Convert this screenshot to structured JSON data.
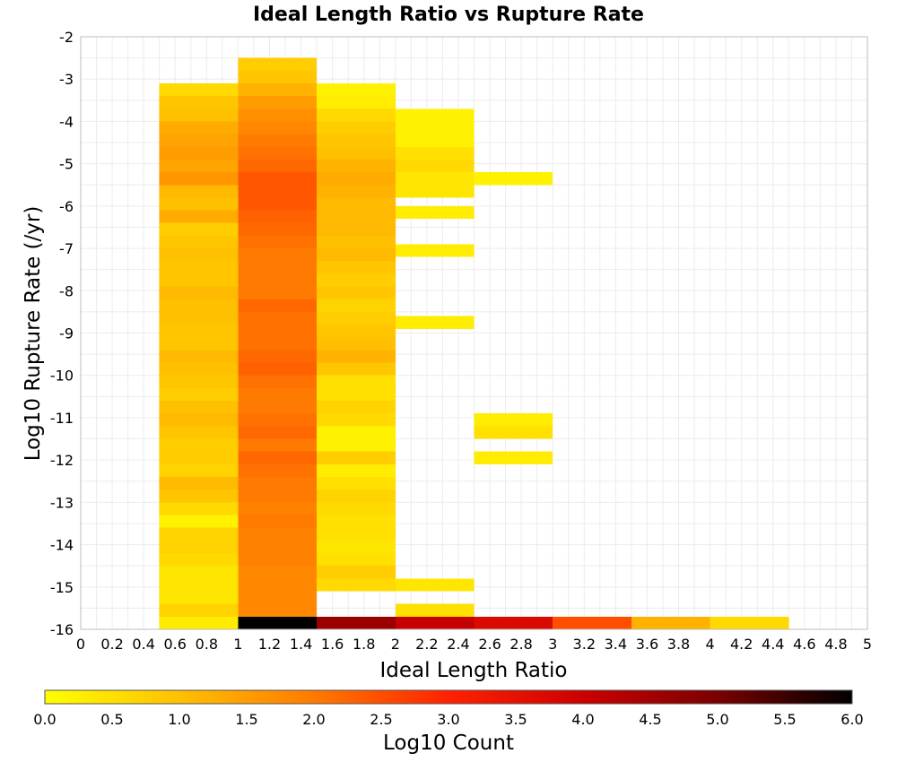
{
  "chart_data": {
    "type": "heatmap",
    "title": "Ideal Length Ratio vs Rupture Rate",
    "xlabel": "Ideal Length Ratio",
    "ylabel": "Log10 Rupture Rate (/yr)",
    "xlim": [
      0,
      5
    ],
    "ylim": [
      -16,
      -2
    ],
    "x_ticks": [
      "0",
      "0.2",
      "0.4",
      "0.6",
      "0.8",
      "1",
      "1.2",
      "1.4",
      "1.6",
      "1.8",
      "2",
      "2.2",
      "2.4",
      "2.6",
      "2.8",
      "3",
      "3.2",
      "3.4",
      "3.6",
      "3.8",
      "4",
      "4.2",
      "4.4",
      "4.6",
      "4.8",
      "5"
    ],
    "y_ticks": [
      "-2",
      "-3",
      "-4",
      "-5",
      "-6",
      "-7",
      "-8",
      "-9",
      "-10",
      "-11",
      "-12",
      "-13",
      "-14",
      "-15",
      "-16"
    ],
    "grid": true,
    "colorbar": {
      "label": "Log10 Count",
      "range": [
        0,
        6
      ],
      "ticks": [
        "0.0",
        "0.5",
        "1.0",
        "1.5",
        "2.0",
        "2.5",
        "3.0",
        "3.5",
        "4.0",
        "4.5",
        "5.0",
        "5.5",
        "6.0"
      ],
      "colors": [
        "#ffff00",
        "#ffc000",
        "#ff7a00",
        "#ff2200",
        "#cc0000",
        "#7a0000",
        "#000000"
      ]
    },
    "x_bin_width": 0.5,
    "y_bin_height": 0.3,
    "columns": [
      {
        "x_start": 0.5,
        "bins": [
          {
            "y": -3.4,
            "value": 0.6
          },
          {
            "y": -3.7,
            "value": 0.9
          },
          {
            "y": -4.0,
            "value": 1.0
          },
          {
            "y": -4.3,
            "value": 1.3
          },
          {
            "y": -4.6,
            "value": 1.4
          },
          {
            "y": -4.9,
            "value": 1.5
          },
          {
            "y": -5.2,
            "value": 1.4
          },
          {
            "y": -5.5,
            "value": 1.6
          },
          {
            "y": -5.8,
            "value": 1.1
          },
          {
            "y": -6.1,
            "value": 1.0
          },
          {
            "y": -6.4,
            "value": 1.3
          },
          {
            "y": -6.7,
            "value": 0.8
          },
          {
            "y": -7.0,
            "value": 0.9
          },
          {
            "y": -7.3,
            "value": 1.0
          },
          {
            "y": -7.6,
            "value": 0.9
          },
          {
            "y": -7.9,
            "value": 0.9
          },
          {
            "y": -8.2,
            "value": 1.1
          },
          {
            "y": -8.5,
            "value": 1.0
          },
          {
            "y": -8.8,
            "value": 1.0
          },
          {
            "y": -9.1,
            "value": 0.9
          },
          {
            "y": -9.4,
            "value": 0.9
          },
          {
            "y": -9.7,
            "value": 1.1
          },
          {
            "y": -10.0,
            "value": 1.0
          },
          {
            "y": -10.3,
            "value": 0.9
          },
          {
            "y": -10.6,
            "value": 0.8
          },
          {
            "y": -10.9,
            "value": 1.0
          },
          {
            "y": -11.2,
            "value": 1.1
          },
          {
            "y": -11.5,
            "value": 0.9
          },
          {
            "y": -11.8,
            "value": 0.8
          },
          {
            "y": -12.1,
            "value": 0.8
          },
          {
            "y": -12.4,
            "value": 0.7
          },
          {
            "y": -12.7,
            "value": 1.1
          },
          {
            "y": -13.0,
            "value": 0.9
          },
          {
            "y": -13.3,
            "value": 0.6
          },
          {
            "y": -13.6,
            "value": 0.2
          },
          {
            "y": -13.9,
            "value": 0.7
          },
          {
            "y": -14.2,
            "value": 0.7
          },
          {
            "y": -14.5,
            "value": 0.6
          },
          {
            "y": -14.8,
            "value": 0.4
          },
          {
            "y": -15.1,
            "value": 0.4
          },
          {
            "y": -15.4,
            "value": 0.4
          },
          {
            "y": -15.7,
            "value": 0.7
          },
          {
            "y": -16.0,
            "value": 0.3
          }
        ]
      },
      {
        "x_start": 1.0,
        "bins": [
          {
            "y": -2.8,
            "value": 0.8
          },
          {
            "y": -3.1,
            "value": 0.9
          },
          {
            "y": -3.4,
            "value": 1.2
          },
          {
            "y": -3.7,
            "value": 1.5
          },
          {
            "y": -4.0,
            "value": 1.7
          },
          {
            "y": -4.3,
            "value": 1.8
          },
          {
            "y": -4.6,
            "value": 2.0
          },
          {
            "y": -4.9,
            "value": 2.1
          },
          {
            "y": -5.2,
            "value": 2.2
          },
          {
            "y": -5.5,
            "value": 2.4
          },
          {
            "y": -5.8,
            "value": 2.4
          },
          {
            "y": -6.1,
            "value": 2.4
          },
          {
            "y": -6.4,
            "value": 2.3
          },
          {
            "y": -6.7,
            "value": 2.2
          },
          {
            "y": -7.0,
            "value": 2.1
          },
          {
            "y": -7.3,
            "value": 2.0
          },
          {
            "y": -7.6,
            "value": 2.0
          },
          {
            "y": -7.9,
            "value": 2.0
          },
          {
            "y": -8.2,
            "value": 2.0
          },
          {
            "y": -8.5,
            "value": 2.2
          },
          {
            "y": -8.8,
            "value": 2.1
          },
          {
            "y": -9.1,
            "value": 2.1
          },
          {
            "y": -9.4,
            "value": 2.1
          },
          {
            "y": -9.7,
            "value": 2.2
          },
          {
            "y": -10.0,
            "value": 2.3
          },
          {
            "y": -10.3,
            "value": 2.1
          },
          {
            "y": -10.6,
            "value": 2.0
          },
          {
            "y": -10.9,
            "value": 2.0
          },
          {
            "y": -11.2,
            "value": 2.1
          },
          {
            "y": -11.5,
            "value": 2.2
          },
          {
            "y": -11.8,
            "value": 2.0
          },
          {
            "y": -12.1,
            "value": 2.2
          },
          {
            "y": -12.4,
            "value": 2.1
          },
          {
            "y": -12.7,
            "value": 2.0
          },
          {
            "y": -13.0,
            "value": 2.0
          },
          {
            "y": -13.3,
            "value": 1.9
          },
          {
            "y": -13.6,
            "value": 2.0
          },
          {
            "y": -13.9,
            "value": 1.9
          },
          {
            "y": -14.2,
            "value": 1.9
          },
          {
            "y": -14.5,
            "value": 1.9
          },
          {
            "y": -14.8,
            "value": 1.8
          },
          {
            "y": -15.1,
            "value": 1.8
          },
          {
            "y": -15.4,
            "value": 1.8
          },
          {
            "y": -15.7,
            "value": 1.8
          },
          {
            "y": -16.0,
            "value": 6.0
          }
        ]
      },
      {
        "x_start": 1.5,
        "bins": [
          {
            "y": -3.4,
            "value": 0.2
          },
          {
            "y": -3.7,
            "value": 0.3
          },
          {
            "y": -4.0,
            "value": 0.6
          },
          {
            "y": -4.3,
            "value": 0.8
          },
          {
            "y": -4.6,
            "value": 0.9
          },
          {
            "y": -4.9,
            "value": 1.0
          },
          {
            "y": -5.2,
            "value": 1.2
          },
          {
            "y": -5.5,
            "value": 1.3
          },
          {
            "y": -5.8,
            "value": 1.2
          },
          {
            "y": -6.1,
            "value": 1.1
          },
          {
            "y": -6.4,
            "value": 1.1
          },
          {
            "y": -6.7,
            "value": 1.1
          },
          {
            "y": -7.0,
            "value": 1.0
          },
          {
            "y": -7.3,
            "value": 1.1
          },
          {
            "y": -7.6,
            "value": 0.9
          },
          {
            "y": -7.9,
            "value": 0.8
          },
          {
            "y": -8.2,
            "value": 0.9
          },
          {
            "y": -8.5,
            "value": 0.7
          },
          {
            "y": -8.8,
            "value": 0.8
          },
          {
            "y": -9.1,
            "value": 0.9
          },
          {
            "y": -9.4,
            "value": 1.0
          },
          {
            "y": -9.7,
            "value": 1.2
          },
          {
            "y": -10.0,
            "value": 0.9
          },
          {
            "y": -10.3,
            "value": 0.5
          },
          {
            "y": -10.6,
            "value": 0.5
          },
          {
            "y": -10.9,
            "value": 0.7
          },
          {
            "y": -11.2,
            "value": 0.6
          },
          {
            "y": -11.5,
            "value": 0.2
          },
          {
            "y": -11.8,
            "value": 0.2
          },
          {
            "y": -12.1,
            "value": 0.8
          },
          {
            "y": -12.4,
            "value": 0.3
          },
          {
            "y": -12.7,
            "value": 0.5
          },
          {
            "y": -13.0,
            "value": 0.7
          },
          {
            "y": -13.3,
            "value": 0.6
          },
          {
            "y": -13.6,
            "value": 0.5
          },
          {
            "y": -13.9,
            "value": 0.5
          },
          {
            "y": -14.2,
            "value": 0.4
          },
          {
            "y": -14.5,
            "value": 0.5
          },
          {
            "y": -14.8,
            "value": 0.8
          },
          {
            "y": -15.1,
            "value": 0.6
          },
          {
            "y": -16.0,
            "value": 4.6
          }
        ]
      },
      {
        "x_start": 2.0,
        "bins": [
          {
            "y": -4.0,
            "value": 0.2
          },
          {
            "y": -4.3,
            "value": 0.2
          },
          {
            "y": -4.6,
            "value": 0.2
          },
          {
            "y": -4.9,
            "value": 0.5
          },
          {
            "y": -5.2,
            "value": 0.6
          },
          {
            "y": -5.5,
            "value": 0.4
          },
          {
            "y": -5.8,
            "value": 0.4
          },
          {
            "y": -6.3,
            "value": 0.3
          },
          {
            "y": -7.2,
            "value": 0.3
          },
          {
            "y": -8.9,
            "value": 0.3
          },
          {
            "y": -15.1,
            "value": 0.4
          },
          {
            "y": -15.7,
            "value": 0.5
          },
          {
            "y": -16.0,
            "value": 4.1
          }
        ]
      },
      {
        "x_start": 2.5,
        "bins": [
          {
            "y": -5.5,
            "value": 0.2
          },
          {
            "y": -11.2,
            "value": 0.3
          },
          {
            "y": -11.5,
            "value": 0.5
          },
          {
            "y": -12.1,
            "value": 0.3
          },
          {
            "y": -16.0,
            "value": 3.7
          }
        ]
      },
      {
        "x_start": 3.0,
        "bins": [
          {
            "y": -16.0,
            "value": 2.5
          }
        ]
      },
      {
        "x_start": 3.5,
        "bins": [
          {
            "y": -16.0,
            "value": 1.2
          }
        ]
      },
      {
        "x_start": 4.0,
        "bins": [
          {
            "y": -16.0,
            "value": 0.6
          }
        ]
      }
    ]
  }
}
